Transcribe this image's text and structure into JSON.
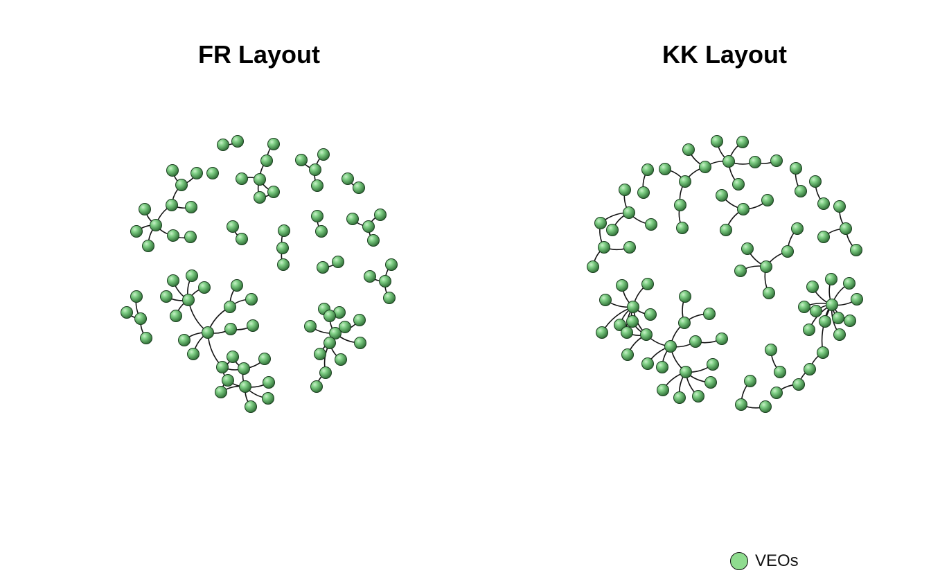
{
  "panels": [
    {
      "id": "fr",
      "title": "FR Layout"
    },
    {
      "id": "kk",
      "title": "KK Layout"
    }
  ],
  "legend": {
    "label": "VEOs",
    "color": "#8fdc8f"
  },
  "node_color": "#6fbf73"
}
